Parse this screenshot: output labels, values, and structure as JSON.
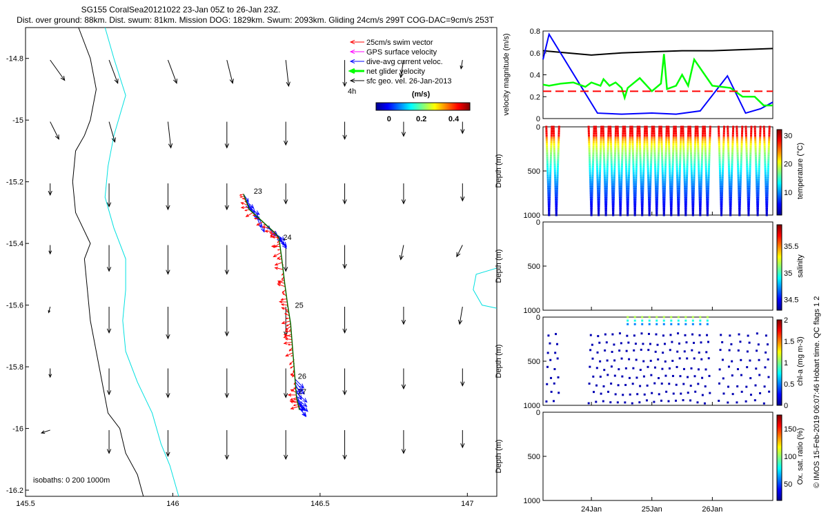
{
  "title_line1": "SG155 CoralSea20121022 23-Jan 05Z to 26-Jan 23Z.",
  "title_line2": "Dist. over ground: 88km. Dist. swum: 81km. Mission DOG: 1829km. Swum: 2093km. Gliding 24cm/s 299T COG-DAC=9cm/s 253T",
  "footer_vertical": "© IMOS 15-Feb-2019 06:07:46 Hobart time. QC flags 1 2",
  "chart_data": [
    {
      "type": "scatter",
      "name": "map",
      "xlim": [
        145.5,
        147.1
      ],
      "ylim": [
        -16.22,
        -14.7
      ],
      "xticks": [
        145.5,
        146,
        146.5,
        147
      ],
      "xtick_labels": [
        "145.5",
        "146",
        "146.5",
        "147"
      ],
      "yticks": [
        -14.8,
        -15,
        -15.2,
        -15.4,
        -15.6,
        -15.8,
        -16,
        -16.2
      ],
      "ytick_labels": [
        "-14.8",
        "-15",
        "-15.2",
        "-15.4",
        "-15.6",
        "-15.8",
        "-16",
        "-16.2"
      ],
      "legend": [
        {
          "label": "25cm/s swim vector",
          "color": "#ff0000"
        },
        {
          "label": "GPS surface velocity",
          "color": "#ff00ff"
        },
        {
          "label": "dive-avg current veloc.",
          "color": "#0000ff"
        },
        {
          "label": "net glider velocity",
          "color": "#00ff00"
        },
        {
          "label": "sfc geo. vel. 26-Jan-2013",
          "color": "#000000"
        }
      ],
      "legend_extra": "4h",
      "colorbar": {
        "label": "(m/s)",
        "ticks": [
          0,
          0.2,
          0.4
        ],
        "tick_labels": [
          "0",
          "0.2",
          "0.4"
        ],
        "range": [
          -0.08,
          0.5
        ]
      },
      "isobath_label": "isobaths: 0   200  1000m",
      "track_day_labels": [
        {
          "day": "23",
          "lon": 146.27,
          "lat": -15.23
        },
        {
          "day": "24",
          "lon": 146.37,
          "lat": -15.38
        },
        {
          "day": "25",
          "lon": 146.41,
          "lat": -15.6
        },
        {
          "day": "26",
          "lon": 146.42,
          "lat": -15.83
        },
        {
          "day": "27",
          "lon": 146.42,
          "lat": -15.88
        }
      ],
      "track": [
        [
          146.24,
          -15.24
        ],
        [
          146.26,
          -15.29
        ],
        [
          146.34,
          -15.36
        ],
        [
          146.36,
          -15.38
        ],
        [
          146.37,
          -15.45
        ],
        [
          146.38,
          -15.53
        ],
        [
          146.39,
          -15.6
        ],
        [
          146.4,
          -15.66
        ],
        [
          146.405,
          -15.72
        ],
        [
          146.41,
          -15.78
        ],
        [
          146.415,
          -15.84
        ],
        [
          146.42,
          -15.9
        ],
        [
          146.43,
          -15.94
        ]
      ],
      "geo_arrow_grid": {
        "lons": [
          145.6,
          145.8,
          146.0,
          146.2,
          146.4,
          146.6,
          146.8,
          147.0
        ],
        "lats": [
          -14.85,
          -15.05,
          -15.25,
          -15.45,
          -15.65,
          -15.85,
          -16.05
        ],
        "vectors": [
          [
            [
              0.05,
              -0.07
            ],
            [
              0.03,
              -0.08
            ],
            [
              0.03,
              -0.08
            ],
            [
              0.02,
              -0.08
            ],
            [
              0.01,
              -0.09
            ],
            [
              0.0,
              -0.09
            ],
            [
              -0.01,
              -0.06
            ],
            [
              -0.005,
              -0.03
            ]
          ],
          [
            [
              0.03,
              -0.06
            ],
            [
              0.02,
              -0.07
            ],
            [
              0.01,
              -0.09
            ],
            [
              0.0,
              -0.09
            ],
            [
              0.0,
              -0.08
            ],
            [
              0.0,
              -0.06
            ],
            [
              0.0,
              -0.05
            ],
            [
              0.0,
              -0.04
            ]
          ],
          [
            [
              0.0,
              -0.04
            ],
            [
              0.0,
              -0.08
            ],
            [
              0.0,
              -0.09
            ],
            [
              0.0,
              -0.09
            ],
            [
              0.0,
              -0.07
            ],
            [
              0.0,
              -0.07
            ],
            [
              0.0,
              -0.07
            ],
            [
              0.0,
              -0.06
            ]
          ],
          [
            [
              0.0,
              -0.03
            ],
            [
              0.0,
              -0.09
            ],
            [
              0.0,
              -0.1
            ],
            [
              0.0,
              -0.1
            ],
            [
              0.0,
              -0.09
            ],
            [
              0.0,
              -0.08
            ],
            [
              -0.01,
              -0.05
            ],
            [
              -0.02,
              -0.04
            ]
          ],
          [
            [
              -0.005,
              -0.02
            ],
            [
              0.0,
              -0.09
            ],
            [
              0.0,
              -0.11
            ],
            [
              0.0,
              -0.1
            ],
            [
              0.0,
              -0.1
            ],
            [
              0.0,
              -0.09
            ],
            [
              0.0,
              -0.06
            ],
            [
              -0.01,
              -0.06
            ]
          ],
          [
            [
              0.0,
              -0.03
            ],
            [
              0.0,
              -0.09
            ],
            [
              0.0,
              -0.1
            ],
            [
              0.0,
              -0.1
            ],
            [
              0.0,
              -0.1
            ],
            [
              0.0,
              -0.09
            ],
            [
              0.0,
              -0.07
            ],
            [
              0.0,
              -0.06
            ]
          ],
          [
            [
              -0.03,
              -0.01
            ],
            [
              0.0,
              -0.08
            ],
            [
              0.0,
              -0.09
            ],
            [
              0.0,
              -0.1
            ],
            [
              0.0,
              -0.1
            ],
            [
              0.0,
              -0.1
            ],
            [
              0.0,
              -0.08
            ],
            [
              0.0,
              -0.06
            ]
          ]
        ]
      },
      "isobath_0": [
        [
          145.68,
          -14.7
        ],
        [
          145.72,
          -14.8
        ],
        [
          145.74,
          -14.9
        ],
        [
          145.72,
          -15.0
        ],
        [
          145.7,
          -15.05
        ],
        [
          145.67,
          -15.1
        ],
        [
          145.66,
          -15.2
        ],
        [
          145.67,
          -15.3
        ],
        [
          145.72,
          -15.4
        ],
        [
          145.7,
          -15.45
        ],
        [
          145.71,
          -15.55
        ],
        [
          145.72,
          -15.65
        ],
        [
          145.74,
          -15.75
        ],
        [
          145.76,
          -15.85
        ],
        [
          145.78,
          -15.95
        ],
        [
          145.82,
          -16.0
        ],
        [
          145.84,
          -16.08
        ],
        [
          145.88,
          -16.15
        ],
        [
          145.9,
          -16.22
        ]
      ],
      "isobath_1000": [
        [
          145.77,
          -14.7
        ],
        [
          145.8,
          -14.8
        ],
        [
          145.84,
          -14.92
        ],
        [
          145.8,
          -15.05
        ],
        [
          145.78,
          -15.15
        ],
        [
          145.77,
          -15.25
        ],
        [
          145.8,
          -15.35
        ],
        [
          145.84,
          -15.45
        ],
        [
          145.84,
          -15.55
        ],
        [
          145.83,
          -15.65
        ],
        [
          145.84,
          -15.75
        ],
        [
          145.88,
          -15.85
        ],
        [
          145.93,
          -15.95
        ],
        [
          145.96,
          -16.05
        ],
        [
          145.99,
          -16.12
        ],
        [
          146.02,
          -16.22
        ]
      ],
      "isobath_offshore": [
        [
          147.1,
          -15.48
        ],
        [
          147.03,
          -15.5
        ],
        [
          147.02,
          -15.55
        ],
        [
          147.05,
          -15.6
        ],
        [
          147.1,
          -15.61
        ]
      ]
    },
    {
      "type": "line",
      "name": "velocity",
      "ylabel": "velocity magnitude (m/s)",
      "ylim": [
        0,
        0.8
      ],
      "yticks": [
        0,
        0.2,
        0.4,
        0.6,
        0.8
      ],
      "ytick_labels": [
        "0",
        "0.2",
        "0.4",
        "0.6",
        "0.8"
      ],
      "xlim": [
        23.2,
        27.0
      ],
      "series": [
        {
          "color": "#000000",
          "x": [
            23.2,
            23.6,
            24.0,
            24.5,
            25.0,
            25.5,
            26.0,
            26.5,
            27.0
          ],
          "y": [
            0.62,
            0.6,
            0.58,
            0.6,
            0.61,
            0.62,
            0.62,
            0.63,
            0.64
          ]
        },
        {
          "color": "#0000ff",
          "x": [
            23.2,
            23.3,
            24.1,
            24.5,
            25.0,
            25.4,
            25.8,
            26.25,
            26.55,
            26.8,
            27.0
          ],
          "y": [
            0.54,
            0.77,
            0.05,
            0.04,
            0.05,
            0.04,
            0.07,
            0.39,
            0.05,
            0.09,
            0.15
          ]
        },
        {
          "color": "#00ff00",
          "x": [
            23.2,
            23.3,
            23.5,
            23.7,
            23.9,
            24.0,
            24.15,
            24.2,
            24.3,
            24.4,
            24.5,
            24.55,
            24.6,
            24.8,
            25.0,
            25.15,
            25.2,
            25.25,
            25.4,
            25.5,
            25.6,
            25.7,
            26.0,
            26.3,
            26.5,
            26.7,
            26.85,
            27.0
          ],
          "y": [
            0.31,
            0.3,
            0.32,
            0.33,
            0.29,
            0.33,
            0.3,
            0.36,
            0.3,
            0.33,
            0.28,
            0.19,
            0.28,
            0.37,
            0.25,
            0.32,
            0.59,
            0.27,
            0.3,
            0.4,
            0.3,
            0.54,
            0.3,
            0.28,
            0.2,
            0.2,
            0.12,
            0.12
          ]
        },
        {
          "color": "#ff0000",
          "x": [
            23.2,
            27.0
          ],
          "y": [
            0.25,
            0.25
          ]
        }
      ]
    },
    {
      "type": "scatter",
      "name": "temperature",
      "ylabel": "Depth (m)",
      "yticks": [
        0,
        500,
        1000
      ],
      "ytick_labels": [
        "0",
        "500",
        "1000"
      ],
      "ylim": [
        1000,
        0
      ],
      "colorbar": {
        "label": "temperature (°C)",
        "range": [
          2,
          32
        ],
        "ticks": [
          10,
          20,
          30
        ],
        "tick_labels": [
          "10",
          "20",
          "30"
        ]
      },
      "dive_times": [
        23.3,
        23.42,
        24.0,
        24.12,
        24.24,
        24.36,
        24.48,
        24.6,
        24.72,
        24.84,
        24.96,
        25.08,
        25.2,
        25.32,
        25.44,
        25.56,
        25.68,
        25.8,
        25.92,
        26.15,
        26.3,
        26.45,
        26.6,
        26.75,
        26.9
      ]
    },
    {
      "type": "scatter",
      "name": "salinity",
      "ylabel": "Depth (m)",
      "yticks": [
        0,
        500,
        1000
      ],
      "ytick_labels": [
        "0",
        "500",
        "1000"
      ],
      "ylim": [
        1000,
        0
      ],
      "colorbar": {
        "label": "salinity",
        "range": [
          34.3,
          35.9
        ],
        "ticks": [
          34.5,
          35,
          35.5
        ],
        "tick_labels": [
          "34.5",
          "35",
          "35.5"
        ]
      }
    },
    {
      "type": "scatter",
      "name": "chl-a",
      "ylabel": "Depth (m)",
      "yticks": [
        0,
        500,
        1000
      ],
      "ytick_labels": [
        "0",
        "500",
        "1000"
      ],
      "ylim": [
        1000,
        0
      ],
      "colorbar": {
        "label": "chl-a (mg m-3)",
        "range": [
          0,
          2
        ],
        "ticks": [
          0,
          0.5,
          1,
          1.5,
          2
        ],
        "tick_labels": [
          "0",
          "0.5",
          "1",
          "1.5",
          "2"
        ]
      },
      "dive_times": [
        23.3,
        23.42,
        24.0,
        24.12,
        24.24,
        24.36,
        24.48,
        24.6,
        24.72,
        24.84,
        24.96,
        25.08,
        25.2,
        25.32,
        25.44,
        25.56,
        25.68,
        25.8,
        25.92,
        26.15,
        26.3,
        26.45,
        26.6,
        26.75,
        26.9
      ]
    },
    {
      "type": "scatter",
      "name": "oxygen",
      "ylabel": "Depth (m)",
      "yticks": [
        0,
        500,
        1000
      ],
      "ytick_labels": [
        "0",
        "500",
        "1000"
      ],
      "ylim": [
        1000,
        0
      ],
      "xlim": [
        23.2,
        27.0
      ],
      "xticks": [
        24,
        25,
        26
      ],
      "xtick_labels": [
        "24Jan",
        "25Jan",
        "26Jan"
      ],
      "colorbar": {
        "label": "Ox. sat. ratio (%)",
        "range": [
          20,
          175
        ],
        "ticks": [
          50,
          100,
          150
        ],
        "tick_labels": [
          "50",
          "100",
          "150"
        ]
      }
    }
  ]
}
